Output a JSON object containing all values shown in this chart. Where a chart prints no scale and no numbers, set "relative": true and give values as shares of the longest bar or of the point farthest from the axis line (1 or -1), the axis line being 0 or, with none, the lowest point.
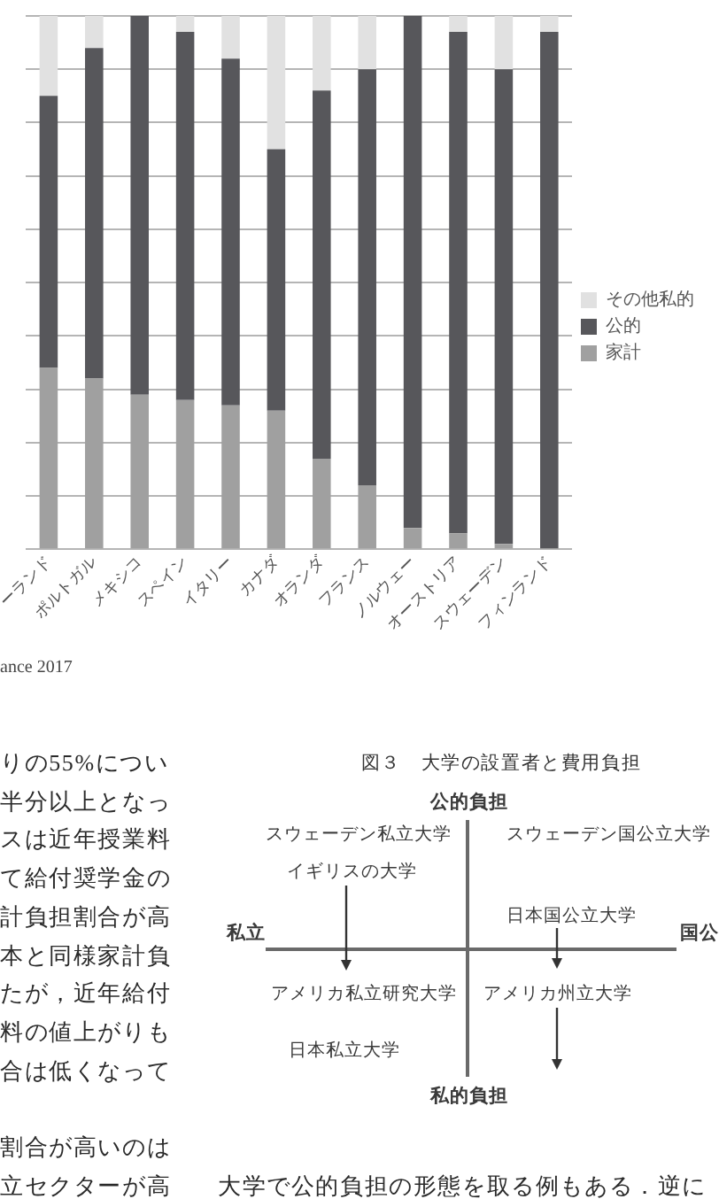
{
  "chart_data": [
    {
      "type": "bar",
      "categories": [
        "ーランド",
        "ポルトガル",
        "メキシコ",
        "スペイン",
        "イタリー",
        "カナダ",
        "オランダ",
        "フランス",
        "ノルウェー",
        "オーストリア",
        "スウェーデン",
        "フィンランド"
      ],
      "series": [
        {
          "name": "家計",
          "color": "#a0a0a0",
          "values": [
            0.34,
            0.32,
            0.29,
            0.28,
            0.27,
            0.26,
            0.17,
            0.12,
            0.04,
            0.03,
            0.01,
            0
          ]
        },
        {
          "name": "公的",
          "color": "#57575b",
          "values": [
            0.51,
            0.62,
            0.71,
            0.69,
            0.65,
            0.49,
            0.69,
            0.78,
            0.96,
            0.94,
            0.89,
            0.97
          ]
        },
        {
          "name": "その他私的",
          "color": "#e1e1e1",
          "values": [
            0.15,
            0.06,
            0,
            0.03,
            0.08,
            0.25,
            0.14,
            0.1,
            0,
            0.03,
            0.1,
            0.03
          ]
        }
      ],
      "stacked": true,
      "relative": true,
      "grid": "y",
      "legend": "right",
      "annotations": [
        "ance 2017"
      ]
    },
    {
      "type": "other",
      "annotations": [
        "りの55%につい",
        "半分以上となっ",
        "スは近年授業料",
        "て給付奨学金の",
        "計負担割合が高",
        "本と同様家計負",
        "たが，近年給付",
        "料の値上がりも",
        "合は低くなって",
        "割合が高いのは",
        "立セクターが高",
        "大学で公的負担の形態を取る例もある．逆に"
      ]
    },
    {
      "type": "other",
      "title": "図３　大学の設置者と費用負担",
      "annotations": [
        "公的負担",
        "スウェーデン私立大学",
        "スウェーデン国公立大学",
        "イギリスの大学",
        "私立",
        "日本国公立大学",
        "国公",
        "アメリカ私立研究大学",
        "アメリカ州立大学",
        "日本私立大学",
        "私的負担"
      ]
    }
  ]
}
